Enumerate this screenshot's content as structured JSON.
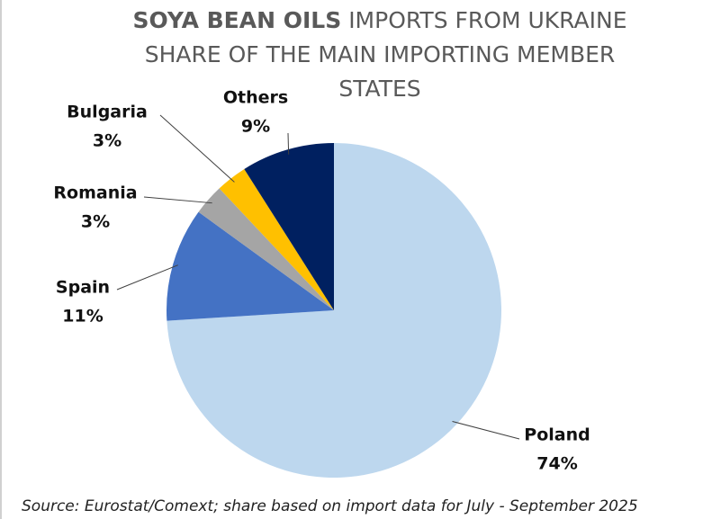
{
  "chart_data": {
    "type": "pie",
    "title_emphasis": "SOYA BEAN OILS",
    "title": "IMPORTS FROM UKRAINE SHARE OF THE MAIN IMPORTING MEMBER STATES",
    "categories": [
      "Poland",
      "Spain",
      "Romania",
      "Bulgaria",
      "Others"
    ],
    "values": [
      74,
      11,
      3,
      3,
      9
    ],
    "value_labels": [
      "74%",
      "11%",
      "3%",
      "3%",
      "9%"
    ],
    "colors": [
      "#bdd7ee",
      "#4472c4",
      "#a5a5a5",
      "#ffc000",
      "#002060"
    ],
    "source": "Source: Eurostat/Comext; share based on import data for July - September 2025"
  }
}
